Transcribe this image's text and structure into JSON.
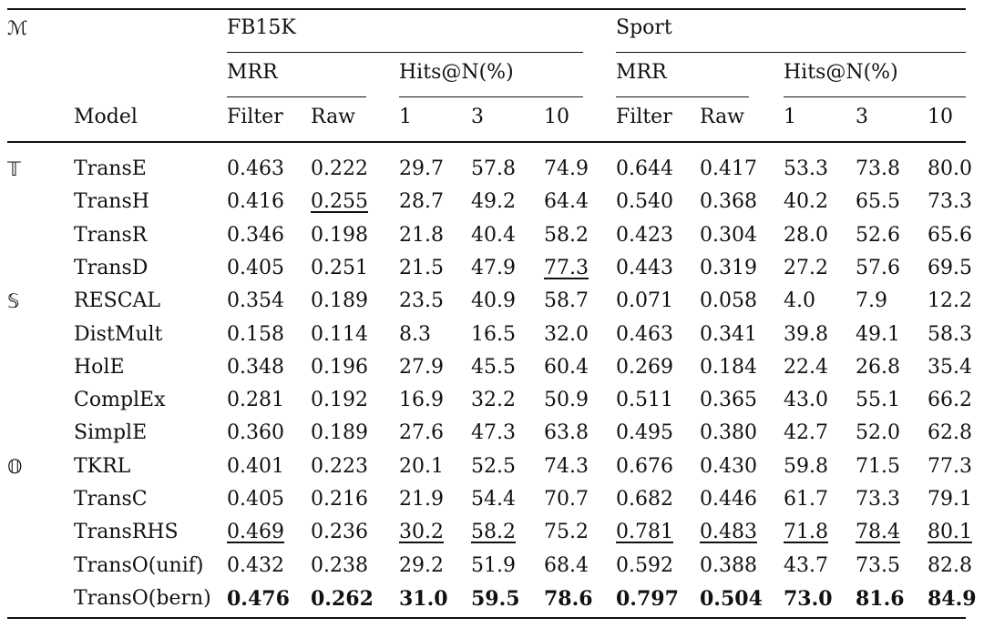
{
  "header": {
    "group_symbol": "ℳ",
    "model_label": "Model",
    "datasets": [
      "FB15K",
      "Sport"
    ],
    "mrr_label": "MRR",
    "hits_label": "Hits@N(%)",
    "subcols": [
      "Filter",
      "Raw",
      "1",
      "3",
      "10"
    ]
  },
  "groups": [
    {
      "symbol": "𝕋",
      "first_row": 0
    },
    {
      "symbol": "𝕊",
      "first_row": 4
    },
    {
      "symbol": "𝕆",
      "first_row": 9
    }
  ],
  "rows": [
    {
      "model": "TransE",
      "cells": [
        "0.463",
        "0.222",
        "29.7",
        "57.8",
        "74.9",
        "0.644",
        "0.417",
        "53.3",
        "73.8",
        "80.0"
      ]
    },
    {
      "model": "TransH",
      "cells": [
        "0.416",
        "0.255",
        "28.7",
        "49.2",
        "64.4",
        "0.540",
        "0.368",
        "40.2",
        "65.5",
        "73.3"
      ]
    },
    {
      "model": "TransR",
      "cells": [
        "0.346",
        "0.198",
        "21.8",
        "40.4",
        "58.2",
        "0.423",
        "0.304",
        "28.0",
        "52.6",
        "65.6"
      ]
    },
    {
      "model": "TransD",
      "cells": [
        "0.405",
        "0.251",
        "21.5",
        "47.9",
        "77.3",
        "0.443",
        "0.319",
        "27.2",
        "57.6",
        "69.5"
      ]
    },
    {
      "model": "RESCAL",
      "cells": [
        "0.354",
        "0.189",
        "23.5",
        "40.9",
        "58.7",
        "0.071",
        "0.058",
        "4.0",
        "7.9",
        "12.2"
      ]
    },
    {
      "model": "DistMult",
      "cells": [
        "0.158",
        "0.114",
        "8.3",
        "16.5",
        "32.0",
        "0.463",
        "0.341",
        "39.8",
        "49.1",
        "58.3"
      ]
    },
    {
      "model": "HolE",
      "cells": [
        "0.348",
        "0.196",
        "27.9",
        "45.5",
        "60.4",
        "0.269",
        "0.184",
        "22.4",
        "26.8",
        "35.4"
      ]
    },
    {
      "model": "ComplEx",
      "cells": [
        "0.281",
        "0.192",
        "16.9",
        "32.2",
        "50.9",
        "0.511",
        "0.365",
        "43.0",
        "55.1",
        "66.2"
      ]
    },
    {
      "model": "SimplE",
      "cells": [
        "0.360",
        "0.189",
        "27.6",
        "47.3",
        "63.8",
        "0.495",
        "0.380",
        "42.7",
        "52.0",
        "62.8"
      ]
    },
    {
      "model": "TKRL",
      "cells": [
        "0.401",
        "0.223",
        "20.1",
        "52.5",
        "74.3",
        "0.676",
        "0.430",
        "59.8",
        "71.5",
        "77.3"
      ]
    },
    {
      "model": "TransC",
      "cells": [
        "0.405",
        "0.216",
        "21.9",
        "54.4",
        "70.7",
        "0.682",
        "0.446",
        "61.7",
        "73.3",
        "79.1"
      ]
    },
    {
      "model": "TransRHS",
      "cells": [
        "0.469",
        "0.236",
        "30.2",
        "58.2",
        "75.2",
        "0.781",
        "0.483",
        "71.8",
        "78.4",
        "80.1"
      ],
      "underline": [
        0,
        2,
        3,
        5,
        6,
        7,
        8,
        9
      ]
    },
    {
      "model": "TransO(unif)",
      "cells": [
        "0.432",
        "0.238",
        "29.2",
        "51.9",
        "68.4",
        "0.592",
        "0.388",
        "43.7",
        "73.5",
        "82.8"
      ]
    },
    {
      "model": "TransO(bern)",
      "cells": [
        "0.476",
        "0.262",
        "31.0",
        "59.5",
        "78.6",
        "0.797",
        "0.504",
        "73.0",
        "81.6",
        "84.9"
      ],
      "bold": true
    }
  ],
  "extra_underlines": [
    {
      "row": 1,
      "col": 1
    },
    {
      "row": 3,
      "col": 4
    }
  ]
}
